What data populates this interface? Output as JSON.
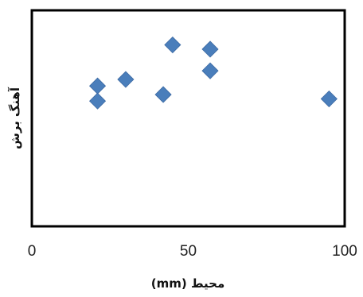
{
  "chart_data": {
    "type": "scatter",
    "xlabel": "محیط (mm)",
    "ylabel": "آهنگ برش",
    "xlim": [
      0,
      100
    ],
    "x_ticks": [
      0,
      50,
      100
    ],
    "grid": false,
    "legend": "none",
    "series": [
      {
        "marker": "diamond",
        "color": "#4a7ebb",
        "points": [
          {
            "x": 21,
            "y": 6.5
          },
          {
            "x": 21,
            "y": 5.8
          },
          {
            "x": 30,
            "y": 6.8
          },
          {
            "x": 42,
            "y": 6.1
          },
          {
            "x": 45,
            "y": 8.4
          },
          {
            "x": 57,
            "y": 8.2
          },
          {
            "x": 57,
            "y": 7.2
          },
          {
            "x": 95,
            "y": 5.9
          }
        ]
      }
    ],
    "ylim": [
      0,
      10
    ]
  }
}
